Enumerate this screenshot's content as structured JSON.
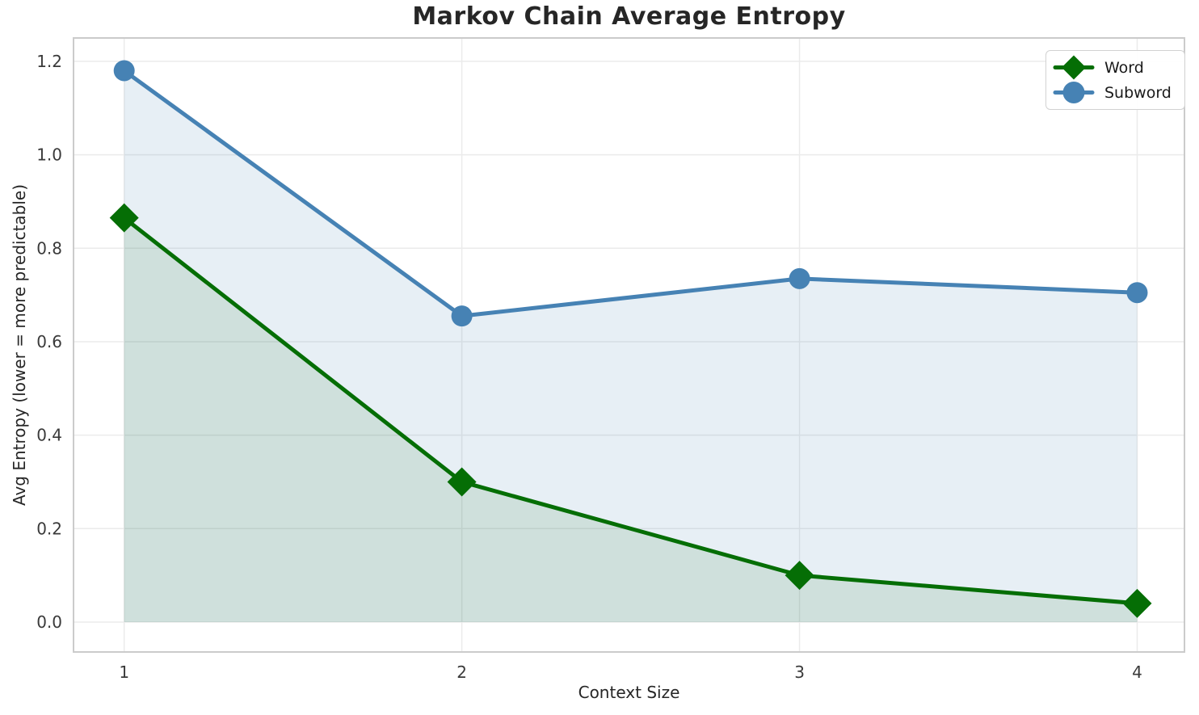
{
  "chart_data": {
    "type": "line",
    "title": "Markov Chain Average Entropy",
    "xlabel": "Context Size",
    "ylabel": "Avg Entropy (lower = more predictable)",
    "x": [
      1,
      2,
      3,
      4
    ],
    "series": [
      {
        "name": "Word",
        "values": [
          0.865,
          0.3,
          0.1,
          0.04
        ],
        "color": "#056e05",
        "marker": "diamond",
        "fill": "rgba(0,100,0,0.10)"
      },
      {
        "name": "Subword",
        "values": [
          1.18,
          0.655,
          0.735,
          0.705
        ],
        "color": "#4682B4",
        "marker": "circle",
        "fill": "rgba(70,130,180,0.13)"
      }
    ],
    "xticks": [
      1,
      2,
      3,
      4
    ],
    "yticks": [
      0.0,
      0.2,
      0.4,
      0.6,
      0.8,
      1.0,
      1.2
    ],
    "xlim": [
      0.85,
      4.14
    ],
    "ylim": [
      -0.064,
      1.25
    ],
    "fill_baseline": 0,
    "grid": true,
    "grid_color": "#ebebeb",
    "spine_color": "#cbcbcb",
    "legend_position": "upper right"
  }
}
